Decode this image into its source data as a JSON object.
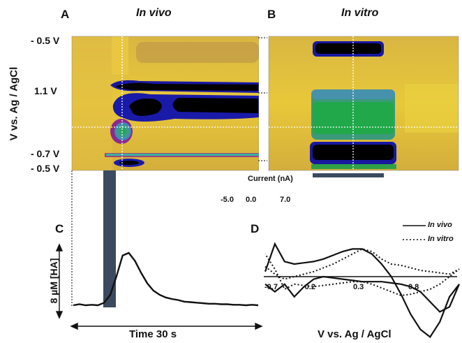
{
  "chart_data": [
    {
      "panel": "A",
      "type": "heatmap",
      "title": "In vivo",
      "ylabel": "V vs. Ag / AgCl",
      "yticks": [
        "- 0.5 V",
        "1.1 V",
        "- 0.7 V",
        "- 0.5 V"
      ]
    },
    {
      "panel": "B",
      "type": "heatmap",
      "title": "In vitro"
    },
    {
      "type": "colorbar",
      "label": "Current (nA)",
      "ticks": [
        "-5.0",
        "0.0",
        "7.0"
      ],
      "colors": [
        "#000000",
        "#1a1aa8",
        "#2d6cc0",
        "#5aa0a8",
        "#d8b040",
        "#ffe800",
        "#8c2a8c",
        "#2ea048"
      ]
    },
    {
      "panel": "C",
      "type": "line",
      "ylabel": "8 µM [HA]",
      "xlabel": "Time 30 s",
      "x": [
        0,
        2,
        4,
        6,
        8,
        10,
        12,
        14,
        16,
        18,
        20,
        22,
        24,
        26,
        28,
        30,
        32,
        34,
        36,
        38,
        40,
        42,
        44,
        46,
        48,
        50,
        52,
        54,
        56,
        58,
        60
      ],
      "y": [
        0.0,
        0.02,
        0.0,
        0.01,
        0.0,
        0.05,
        0.2,
        0.55,
        0.95,
        1.0,
        0.85,
        0.62,
        0.42,
        0.28,
        0.2,
        0.15,
        0.12,
        0.1,
        0.07,
        0.06,
        0.05,
        0.04,
        0.03,
        0.03,
        0.02,
        0.02,
        0.01,
        0.01,
        0.0,
        0.01,
        0.0
      ]
    },
    {
      "panel": "D",
      "type": "line",
      "xlabel": "V vs. Ag / AgCl",
      "xticks": [
        "-0.7",
        "-0.2",
        "0.3",
        "0.8"
      ],
      "series": [
        {
          "name": "In vivo",
          "style": "solid",
          "x": [
            -0.7,
            -0.6,
            -0.5,
            -0.4,
            -0.3,
            -0.2,
            -0.1,
            0.0,
            0.1,
            0.2,
            0.3,
            0.4,
            0.5,
            0.6,
            0.7,
            0.8,
            0.9,
            1.0,
            1.1,
            1.2,
            1.3,
            1.2,
            1.1,
            1.0,
            0.9,
            0.8,
            0.7,
            0.6,
            0.5,
            0.4,
            0.3,
            0.2,
            0.1,
            0.0,
            -0.1,
            -0.2,
            -0.3,
            -0.4,
            -0.5,
            -0.6,
            -0.7
          ],
          "y": [
            0.2,
            1.3,
            0.6,
            0.5,
            0.55,
            0.6,
            0.7,
            0.85,
            1.0,
            1.1,
            1.1,
            0.9,
            0.5,
            0.0,
            -0.7,
            -1.5,
            -2.1,
            -2.4,
            -1.8,
            -0.8,
            -0.3,
            -1.2,
            -1.4,
            -1.0,
            -0.6,
            -0.4,
            -0.3,
            -0.25,
            -0.2,
            -0.2,
            -0.2,
            -0.15,
            -0.1,
            -0.05,
            0.0,
            -0.1,
            -0.4,
            -0.8,
            -0.3,
            -0.6,
            -0.3
          ]
        },
        {
          "name": "In vitro",
          "style": "dotted",
          "x": [
            -0.7,
            -0.6,
            -0.5,
            -0.4,
            -0.3,
            -0.2,
            -0.1,
            0.0,
            0.1,
            0.2,
            0.3,
            0.4,
            0.5,
            0.6,
            0.7,
            0.8,
            0.9,
            1.0,
            1.1,
            1.2,
            1.3,
            1.2,
            1.1,
            1.0,
            0.9,
            0.8,
            0.7,
            0.6,
            0.5,
            0.4,
            0.3,
            0.2,
            0.1,
            0.0,
            -0.1,
            -0.2,
            -0.3,
            -0.4,
            -0.5,
            -0.6,
            -0.7
          ],
          "y": [
            0.4,
            0.1,
            -0.1,
            0.0,
            0.1,
            0.2,
            0.35,
            0.5,
            0.7,
            0.9,
            1.1,
            1.0,
            0.7,
            0.5,
            0.45,
            0.35,
            0.25,
            0.2,
            0.15,
            0.1,
            0.3,
            0.0,
            -0.3,
            -0.5,
            -0.6,
            -0.7,
            -0.75,
            -0.6,
            -0.45,
            -0.3,
            -0.2,
            -0.2,
            -0.25,
            -0.3,
            -0.35,
            -0.4,
            -0.35,
            -0.3,
            -0.5,
            0.3,
            0.9
          ]
        }
      ]
    }
  ]
}
